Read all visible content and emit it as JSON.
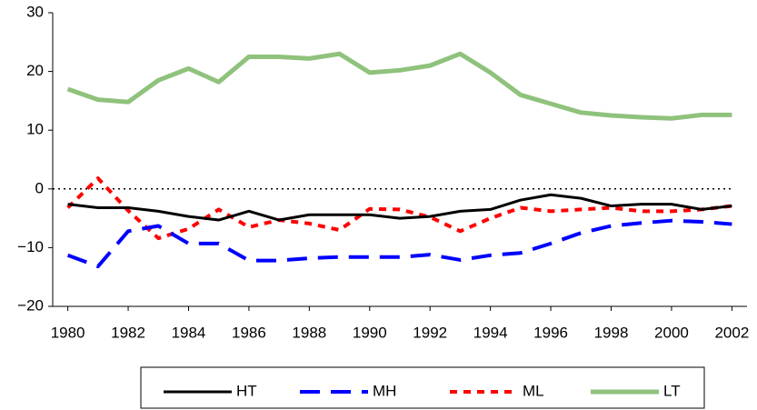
{
  "chart_data": {
    "type": "line",
    "x": [
      1980,
      1981,
      1982,
      1983,
      1984,
      1985,
      1986,
      1987,
      1988,
      1989,
      1990,
      1991,
      1992,
      1993,
      1994,
      1995,
      1996,
      1997,
      1998,
      1999,
      2000,
      2001,
      2002
    ],
    "xlim": [
      1979.5,
      2002.5
    ],
    "xticks": [
      1980,
      1982,
      1984,
      1986,
      1988,
      1990,
      1992,
      1994,
      1996,
      1998,
      2000,
      2002
    ],
    "ylim": [
      -20,
      30
    ],
    "yticks": [
      {
        "value": -20,
        "label": "−20"
      },
      {
        "value": -10,
        "label": "−10"
      },
      0,
      10,
      20,
      30
    ],
    "reference_line": 0,
    "legend": "bottom",
    "series": [
      {
        "name": "HT",
        "color": "#000000",
        "style": "solid",
        "values": [
          -2.6,
          -3.2,
          -3.2,
          -3.8,
          -4.7,
          -5.3,
          -3.8,
          -5.3,
          -4.4,
          -4.4,
          -4.4,
          -5,
          -4.7,
          -3.8,
          -3.5,
          -1.9,
          -1,
          -1.6,
          -2.9,
          -2.6,
          -2.6,
          -3.5,
          -2.9
        ]
      },
      {
        "name": "MH",
        "color": "#0000ff",
        "style": "dashed",
        "values": [
          -11.3,
          -13.2,
          -7.2,
          -6.3,
          -9.3,
          -9.3,
          -12.2,
          -12.2,
          -11.8,
          -11.6,
          -11.6,
          -11.6,
          -11.2,
          -12.1,
          -11.3,
          -10.9,
          -9.3,
          -7.5,
          -6.3,
          -5.8,
          -5.4,
          -5.6,
          -6
        ]
      },
      {
        "name": "ML",
        "color": "#ff0000",
        "style": "dotted",
        "values": [
          -3.2,
          1.8,
          -3.7,
          -8.4,
          -6.8,
          -3.5,
          -6.5,
          -5.3,
          -5.9,
          -7,
          -3.4,
          -3.5,
          -4.8,
          -7.2,
          -5,
          -3.2,
          -3.8,
          -3.5,
          -3.2,
          -3.8,
          -3.8,
          -3.5,
          -2.9
        ]
      },
      {
        "name": "LT",
        "color": "#8fc27c",
        "style": "thick",
        "values": [
          17,
          15.2,
          14.8,
          18.5,
          20.5,
          18.2,
          22.5,
          22.5,
          22.2,
          23,
          19.8,
          20.2,
          21,
          23,
          19.8,
          16,
          14.5,
          13,
          12.5,
          12.2,
          12,
          12.6,
          12.6
        ]
      }
    ]
  }
}
